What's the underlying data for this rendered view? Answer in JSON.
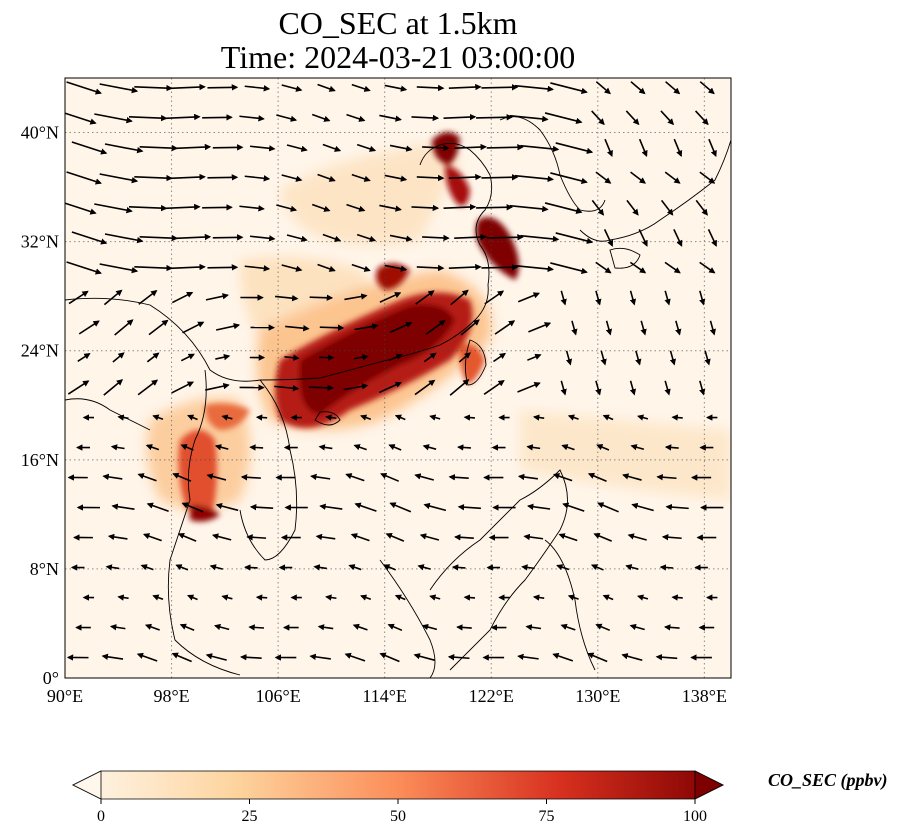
{
  "title": {
    "line1": "CO_SEC at 1.5km",
    "line2": "Time: 2024-03-21 03:00:00"
  },
  "map": {
    "variable": "CO_SEC",
    "level": "1.5km",
    "time": "2024-03-21 03:00:00",
    "lon_range": [
      90,
      140
    ],
    "lat_range": [
      0,
      44
    ],
    "gridlines": "dotted",
    "lon_ticks": [
      {
        "value": 90,
        "label": "90°E"
      },
      {
        "value": 98,
        "label": "98°E"
      },
      {
        "value": 106,
        "label": "106°E"
      },
      {
        "value": 114,
        "label": "114°E"
      },
      {
        "value": 122,
        "label": "122°E"
      },
      {
        "value": 130,
        "label": "130°E"
      },
      {
        "value": 138,
        "label": "138°E"
      }
    ],
    "lat_ticks": [
      {
        "value": 0,
        "label": "0°"
      },
      {
        "value": 8,
        "label": "8°N"
      },
      {
        "value": 16,
        "label": "16°N"
      },
      {
        "value": 24,
        "label": "24°N"
      },
      {
        "value": 32,
        "label": "32°N"
      },
      {
        "value": 40,
        "label": "40°N"
      }
    ],
    "overlay": "wind vectors"
  },
  "colorbar": {
    "label": "CO_SEC (ppbv)",
    "colormap": "OrRd",
    "range": [
      0,
      100
    ],
    "extend": "both",
    "ticks": [
      {
        "value": 0,
        "label": "0"
      },
      {
        "value": 25,
        "label": "25"
      },
      {
        "value": 50,
        "label": "50"
      },
      {
        "value": 75,
        "label": "75"
      },
      {
        "value": 100,
        "label": "100"
      }
    ],
    "colors": [
      "#fff7ec",
      "#fdd49e",
      "#fc8d59",
      "#d7301f",
      "#7f0000"
    ]
  }
}
